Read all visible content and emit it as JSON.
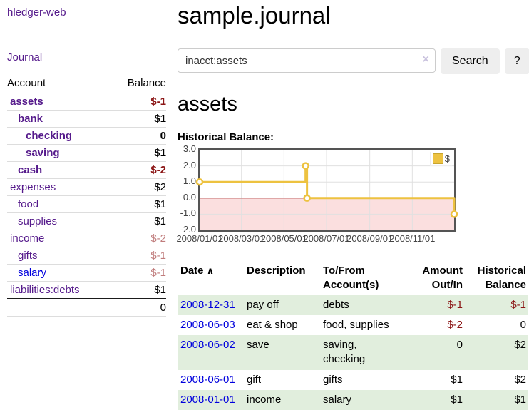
{
  "colors": {
    "purple": "#551a8b",
    "link_blue": "#0000dd",
    "neg_strong": "#8b1515",
    "neg_soft": "#c07c7c",
    "row_green": "#e1eedd",
    "button_gray": "#eeeeee",
    "chart_line": "#edc240"
  },
  "app": {
    "brand": "hledger-web"
  },
  "sidebar": {
    "journal_link": "Journal",
    "accounts_table": {
      "headers": [
        "Account",
        "Balance"
      ],
      "rows": [
        {
          "name": "assets",
          "balance": "$-1",
          "level": 0,
          "bold": true,
          "neg": "strong"
        },
        {
          "name": "bank",
          "balance": "$1",
          "level": 1,
          "bold": true
        },
        {
          "name": "checking",
          "balance": "0",
          "level": 2,
          "bold": true
        },
        {
          "name": "saving",
          "balance": "$1",
          "level": 2,
          "bold": true
        },
        {
          "name": "cash",
          "balance": "$-2",
          "level": 1,
          "bold": true,
          "neg": "strong"
        },
        {
          "name": "expenses",
          "balance": "$2",
          "level": 0
        },
        {
          "name": "food",
          "balance": "$1",
          "level": 1
        },
        {
          "name": "supplies",
          "balance": "$1",
          "level": 1
        },
        {
          "name": "income",
          "balance": "$-2",
          "level": 0,
          "neg": "soft"
        },
        {
          "name": "gifts",
          "balance": "$-1",
          "level": 1,
          "neg": "soft"
        },
        {
          "name": "salary",
          "balance": "$-1",
          "level": 1,
          "neg": "soft",
          "link": "blue"
        },
        {
          "name": "liabilities:debts",
          "balance": "$1",
          "level": 0
        }
      ],
      "total": "0"
    }
  },
  "main": {
    "title": "sample.journal",
    "search": {
      "value": "inacct:assets",
      "clear_icon": "×",
      "button_label": "Search",
      "help_label": "?"
    },
    "account_heading": "assets",
    "chart_heading": "Historical Balance:"
  },
  "chart_data": {
    "type": "line",
    "step": true,
    "title": "Historical Balance:",
    "legend": {
      "position": "top-right",
      "label": "$"
    },
    "series": [
      {
        "name": "$",
        "points": [
          {
            "date": "2008-01-01",
            "value": 1
          },
          {
            "date": "2008-06-01",
            "value": 2
          },
          {
            "date": "2008-06-03",
            "value": 0
          },
          {
            "date": "2008-12-31",
            "value": -1
          }
        ]
      }
    ],
    "ylim": [
      -2,
      3
    ],
    "yticks": [
      3,
      2,
      1,
      0,
      -1,
      -2
    ],
    "ytick_labels": [
      "3.0",
      "2.0",
      "1.0",
      "0.0",
      "-1.0",
      "-2.0"
    ],
    "xticks": [
      {
        "date": "2008-01-01",
        "label": "2008/01/01"
      },
      {
        "date": "2008-03-01",
        "label": "2008/03/01"
      },
      {
        "date": "2008-05-01",
        "label": "2008/05/01"
      },
      {
        "date": "2008-07-01",
        "label": "2008/07/01"
      },
      {
        "date": "2008-09-01",
        "label": "2008/09/01"
      },
      {
        "date": "2008-11-01",
        "label": "2008/11/01"
      }
    ],
    "xrange": [
      "2008-01-01",
      "2008-12-31"
    ],
    "grid": true,
    "line_color": "#edc240",
    "marker_fill": "#ffffff",
    "negative_fill": "#fbdfdf",
    "zero_line_color": "#8b0000",
    "grid_color": "#e0e0e0",
    "border_color": "#545454"
  },
  "register_table": {
    "sort_icon": "∧",
    "headers": [
      "Date",
      "Description",
      "To/From Account(s)",
      "Amount Out/In",
      "Historical Balance"
    ],
    "rows": [
      {
        "date": "2008-12-31",
        "description": "pay off",
        "accounts": [
          "debts"
        ],
        "amount": "$-1",
        "balance": "$-1"
      },
      {
        "date": "2008-06-03",
        "description": "eat & shop",
        "accounts": [
          "food, supplies"
        ],
        "amount": "$-2",
        "balance": "0"
      },
      {
        "date": "2008-06-02",
        "description": "save",
        "accounts": [
          "saving,",
          "checking"
        ],
        "amount": "0",
        "balance": "$2"
      },
      {
        "date": "2008-06-01",
        "description": "gift",
        "accounts": [
          "gifts"
        ],
        "amount": "$1",
        "balance": "$2"
      },
      {
        "date": "2008-01-01",
        "description": "income",
        "accounts": [
          "salary"
        ],
        "amount": "$1",
        "balance": "$1"
      }
    ]
  }
}
